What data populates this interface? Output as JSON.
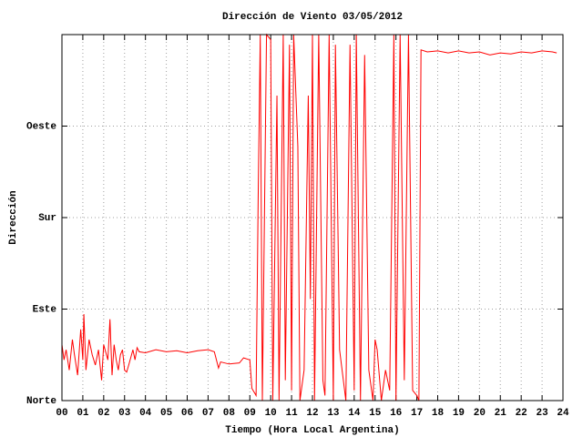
{
  "chart_data": {
    "type": "line",
    "title": "Dirección de Viento 03/05/2012",
    "xlabel": "Tiempo (Hora Local Argentina)",
    "ylabel": "Dirección",
    "xlim": [
      0,
      24
    ],
    "ylim": [
      0,
      360
    ],
    "xticks": [
      {
        "value": 0,
        "label": "00"
      },
      {
        "value": 1,
        "label": "01"
      },
      {
        "value": 2,
        "label": "02"
      },
      {
        "value": 3,
        "label": "03"
      },
      {
        "value": 4,
        "label": "04"
      },
      {
        "value": 5,
        "label": "05"
      },
      {
        "value": 6,
        "label": "06"
      },
      {
        "value": 7,
        "label": "07"
      },
      {
        "value": 8,
        "label": "08"
      },
      {
        "value": 9,
        "label": "09"
      },
      {
        "value": 10,
        "label": "10"
      },
      {
        "value": 11,
        "label": "11"
      },
      {
        "value": 12,
        "label": "12"
      },
      {
        "value": 13,
        "label": "13"
      },
      {
        "value": 14,
        "label": "14"
      },
      {
        "value": 15,
        "label": "15"
      },
      {
        "value": 16,
        "label": "16"
      },
      {
        "value": 17,
        "label": "17"
      },
      {
        "value": 18,
        "label": "18"
      },
      {
        "value": 19,
        "label": "19"
      },
      {
        "value": 20,
        "label": "20"
      },
      {
        "value": 21,
        "label": "21"
      },
      {
        "value": 22,
        "label": "22"
      },
      {
        "value": 23,
        "label": "23"
      },
      {
        "value": 24,
        "label": "24"
      }
    ],
    "yticks": [
      {
        "value": 0,
        "label": "Norte"
      },
      {
        "value": 90,
        "label": "Este"
      },
      {
        "value": 180,
        "label": "Sur"
      },
      {
        "value": 270,
        "label": "Oeste"
      }
    ],
    "grid": true,
    "x": [
      0.0,
      0.1,
      0.2,
      0.35,
      0.5,
      0.6,
      0.75,
      0.9,
      1.0,
      1.05,
      1.15,
      1.3,
      1.45,
      1.6,
      1.75,
      1.9,
      2.0,
      2.2,
      2.3,
      2.4,
      2.5,
      2.6,
      2.7,
      2.8,
      2.9,
      3.0,
      3.1,
      3.2,
      3.4,
      3.5,
      3.6,
      3.7,
      4.0,
      4.5,
      5.0,
      5.5,
      6.0,
      6.5,
      7.0,
      7.3,
      7.5,
      7.6,
      8.0,
      8.5,
      8.7,
      9.0,
      9.1,
      9.3,
      9.4,
      9.5,
      9.6,
      9.8,
      10.0,
      10.1,
      10.3,
      10.4,
      10.6,
      10.7,
      10.9,
      11.0,
      11.1,
      11.3,
      11.4,
      11.6,
      11.8,
      11.9,
      12.0,
      12.1,
      12.3,
      12.5,
      12.6,
      12.8,
      13.0,
      13.1,
      13.3,
      13.6,
      13.8,
      14.0,
      14.1,
      14.3,
      14.5,
      14.7,
      14.9,
      15.0,
      15.1,
      15.3,
      15.5,
      15.7,
      15.9,
      16.0,
      16.2,
      16.4,
      16.6,
      16.8,
      17.0,
      17.1,
      17.2,
      17.5,
      18.0,
      18.5,
      19.0,
      19.5,
      20.0,
      20.5,
      21.0,
      21.5,
      22.0,
      22.5,
      23.0,
      23.5,
      23.7
    ],
    "series": [
      {
        "color": "#ff0000",
        "values": [
          55,
          40,
          50,
          30,
          60,
          45,
          25,
          70,
          40,
          85,
          30,
          60,
          45,
          35,
          50,
          20,
          55,
          40,
          80,
          25,
          55,
          40,
          30,
          45,
          50,
          30,
          28,
          35,
          50,
          40,
          52,
          48,
          47,
          50,
          48,
          49,
          47,
          49,
          50,
          48,
          32,
          38,
          36,
          37,
          42,
          40,
          12,
          5,
          200,
          360,
          0,
          360,
          355,
          0,
          300,
          0,
          360,
          20,
          350,
          10,
          360,
          250,
          0,
          30,
          300,
          100,
          360,
          0,
          360,
          20,
          5,
          360,
          0,
          350,
          50,
          0,
          350,
          10,
          360,
          0,
          340,
          30,
          0,
          60,
          50,
          0,
          30,
          10,
          360,
          0,
          360,
          20,
          360,
          10,
          5,
          0,
          345,
          343,
          344,
          342,
          344,
          342,
          343,
          340,
          342,
          341,
          343,
          342,
          344,
          343,
          342
        ]
      }
    ]
  }
}
